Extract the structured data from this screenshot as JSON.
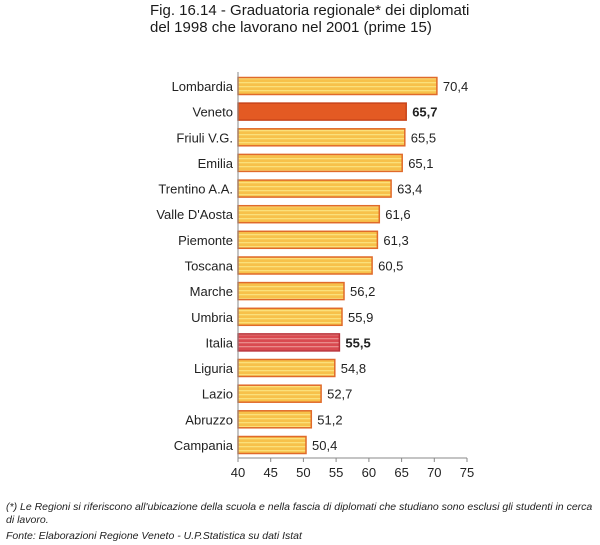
{
  "title_line1": "Fig. 16.14 - Graduatoria regionale* dei diplomati",
  "title_line2": "del 1998 che lavorano nel 2001 (prime 15)",
  "footnote": "(*) Le Regioni si riferiscono all'ubicazione della scuola e nella fascia di diplomati che studiano sono esclusi gli studenti in cerca di lavoro.",
  "source": "Fonte: Elaborazioni Regione Veneto - U.P.Statistica su dati Istat",
  "colors": {
    "normal_bar": "#f7c14a",
    "normal_stripe": "#fbe07a",
    "normal_border": "#e06a2a",
    "veneto_bar": "#e35a23",
    "italia_bar": "#d94a50",
    "italia_stripe": "#e98a8a",
    "axis": "#888888"
  },
  "chart_data": {
    "type": "bar",
    "orientation": "horizontal",
    "title": "Fig. 16.14 - Graduatoria regionale* dei diplomati del 1998 che lavorano nel 2001 (prime 15)",
    "xlabel": "",
    "ylabel": "",
    "xlim": [
      40,
      75
    ],
    "xticks": [
      40,
      45,
      50,
      55,
      60,
      65,
      70,
      75
    ],
    "categories": [
      "Lombardia",
      "Veneto",
      "Friuli V.G.",
      "Emilia",
      "Trentino A.A.",
      "Valle D'Aosta",
      "Piemonte",
      "Toscana",
      "Marche",
      "Umbria",
      "Italia",
      "Liguria",
      "Lazio",
      "Abruzzo",
      "Campania"
    ],
    "values": [
      70.4,
      65.7,
      65.5,
      65.1,
      63.4,
      61.6,
      61.3,
      60.5,
      56.2,
      55.9,
      55.5,
      54.8,
      52.7,
      51.2,
      50.4
    ],
    "value_labels": [
      "70,4",
      "65,7",
      "65,5",
      "65,1",
      "63,4",
      "61,6",
      "61,3",
      "60,5",
      "56,2",
      "55,9",
      "55,5",
      "54,8",
      "52,7",
      "51,2",
      "50,4"
    ],
    "highlight": [
      "Veneto",
      "Italia"
    ]
  }
}
